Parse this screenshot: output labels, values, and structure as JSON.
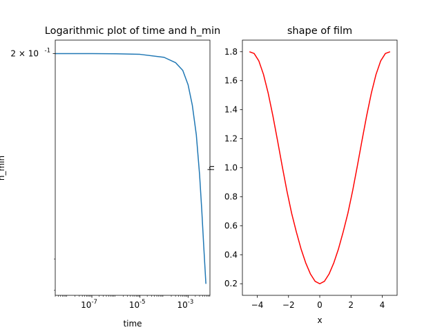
{
  "chart_data": [
    {
      "type": "line",
      "title": "Logarithmic plot of time and h_min",
      "xlabel": "time",
      "ylabel": "h_min",
      "xscale": "log",
      "yscale": "log",
      "xlim": [
        3e-09,
        0.0081
      ],
      "ylim": [
        0.0885,
        0.2093
      ],
      "xticks": [
        1e-07,
        1e-05,
        0.001
      ],
      "xtick_labels": [
        "10",
        "10",
        "10"
      ],
      "xtick_exponents": [
        "-7",
        "-5",
        "-3"
      ],
      "yticks": [
        0.2
      ],
      "ytick_labels": [
        "2 × 10"
      ],
      "ytick_exponents": [
        "-1"
      ],
      "grid": false,
      "series": [
        {
          "color": "#1f77b4",
          "x": [
            3e-09,
            1e-07,
            1e-06,
            1e-05,
            0.0001,
            0.0003,
            0.0006,
            0.001,
            0.0015,
            0.0022,
            0.003,
            0.0037,
            0.0045,
            0.0055
          ],
          "y": [
            0.2,
            0.2,
            0.1999,
            0.1995,
            0.1975,
            0.194,
            0.189,
            0.18,
            0.168,
            0.152,
            0.133,
            0.118,
            0.104,
            0.092
          ]
        }
      ]
    },
    {
      "type": "line",
      "title": "shape of film",
      "xlabel": "x",
      "ylabel": "h",
      "xlim": [
        -4.95,
        4.95
      ],
      "ylim": [
        0.12,
        1.88
      ],
      "xticks": [
        -4,
        -2,
        0,
        2,
        4
      ],
      "yticks": [
        0.2,
        0.4,
        0.6,
        0.8,
        1.0,
        1.2,
        1.4,
        1.6,
        1.8
      ],
      "xtick_labels": [
        "−4",
        "−2",
        "0",
        "2",
        "4"
      ],
      "ytick_labels": [
        "0.2",
        "0.4",
        "0.6",
        "0.8",
        "1.0",
        "1.2",
        "1.4",
        "1.6",
        "1.8"
      ],
      "grid": false,
      "series": [
        {
          "color": "#ff0000",
          "x": [
            -4.5,
            -4.2,
            -3.9,
            -3.6,
            -3.3,
            -3.0,
            -2.7,
            -2.4,
            -2.1,
            -1.8,
            -1.5,
            -1.2,
            -0.9,
            -0.6,
            -0.3,
            0.0,
            0.3,
            0.6,
            0.9,
            1.2,
            1.5,
            1.8,
            2.1,
            2.4,
            2.7,
            3.0,
            3.3,
            3.6,
            3.9,
            4.2,
            4.5
          ],
          "y": [
            1.8,
            1.788,
            1.737,
            1.643,
            1.514,
            1.358,
            1.186,
            1.009,
            0.839,
            0.686,
            0.558,
            0.441,
            0.344,
            0.268,
            0.217,
            0.2,
            0.217,
            0.268,
            0.344,
            0.441,
            0.558,
            0.686,
            0.839,
            1.009,
            1.186,
            1.358,
            1.514,
            1.643,
            1.737,
            1.788,
            1.8
          ]
        }
      ]
    }
  ]
}
